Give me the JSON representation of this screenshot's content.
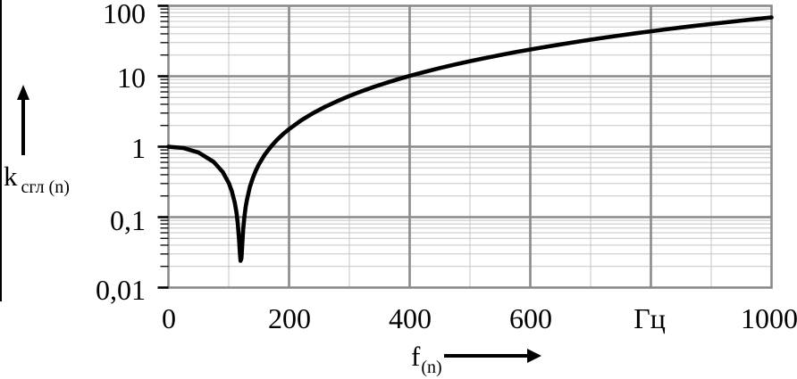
{
  "figure": {
    "y_axis_name": "k",
    "y_axis_sub": "сгл (n)",
    "x_axis_name": "f",
    "x_axis_sub": "(n)"
  },
  "chart_data": {
    "type": "line",
    "title": "",
    "xlabel": "f(n), Гц",
    "ylabel": "k сгл (n)",
    "x_scale": "linear",
    "y_scale": "log",
    "xlim": [
      0,
      1000
    ],
    "ylim": [
      0.01,
      100
    ],
    "x_tick_values": [
      0,
      200,
      400,
      600,
      800,
      1000
    ],
    "x_tick_labels": [
      "0",
      "200",
      "400",
      "600",
      "Гц",
      "1000"
    ],
    "x_minor_step_hz": 100,
    "y_tick_values": [
      100,
      10,
      1,
      0.1,
      0.01
    ],
    "y_tick_labels": [
      "100",
      "10",
      "1",
      "0,1",
      "0,01"
    ],
    "grid": {
      "major_color": "#8a8a8a",
      "minor_color": "#c4c4c4",
      "major_width": 2.6,
      "minor_width": 1
    },
    "curve_color": "#000000",
    "notch_frequency_hz": 120,
    "y_render_floor": 0.024,
    "legend": null,
    "series": [
      {
        "name": "k_сгл(n)",
        "x": [
          0,
          25,
          50,
          75,
          90,
          100,
          105,
          110,
          113,
          115,
          117,
          118.5,
          119.5,
          121,
          122.5,
          124,
          126,
          128,
          130,
          135,
          140,
          145,
          150,
          160,
          170,
          180,
          190,
          200,
          220,
          240,
          260,
          280,
          300,
          320,
          340,
          360,
          380,
          400,
          425,
          450,
          475,
          500,
          525,
          550,
          575,
          600,
          625,
          650,
          675,
          700,
          725,
          750,
          775,
          800,
          825,
          850,
          875,
          900,
          925,
          950,
          975,
          1000
        ],
        "y": [
          1,
          0.957,
          0.826,
          0.609,
          0.4375,
          0.306,
          0.234,
          0.16,
          0.113,
          0.082,
          0.049,
          0.031,
          0.024,
          0.026,
          0.042,
          0.068,
          0.103,
          0.138,
          0.174,
          0.266,
          0.361,
          0.46,
          0.5625,
          0.778,
          1.006,
          1.25,
          1.507,
          1.778,
          2.36,
          3.0,
          3.69,
          4.44,
          5.25,
          6.11,
          7.03,
          8.0,
          9.03,
          10.11,
          11.54,
          13.06,
          14.67,
          16.36,
          18.14,
          20.01,
          21.95,
          24.0,
          26.1,
          28.3,
          30.6,
          33.0,
          35.5,
          38.1,
          40.7,
          43.4,
          46.3,
          49.2,
          52.2,
          55.25,
          58.4,
          61.7,
          65.0,
          68.4
        ]
      }
    ]
  }
}
